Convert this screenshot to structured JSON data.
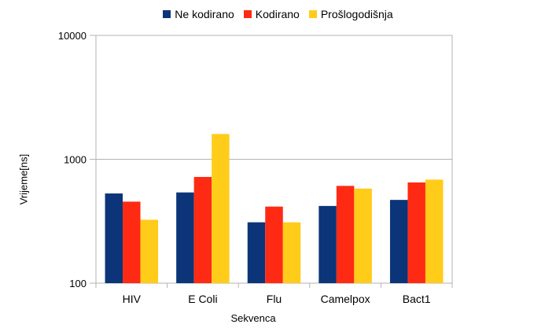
{
  "chart_data": {
    "type": "bar",
    "xlabel": "Sekvenca",
    "ylabel": "Vrijeme[ns]",
    "yscale": "log",
    "ylim": [
      100,
      10000
    ],
    "yticks": [
      "100",
      "1000",
      "10000"
    ],
    "categories": [
      "HIV",
      "E Coli",
      "Flu",
      "Camelpox",
      "Bact1"
    ],
    "series": [
      {
        "name": "Ne kodirano",
        "color": "#0b3578",
        "values": [
          530,
          540,
          310,
          420,
          470
        ]
      },
      {
        "name": "Kodirano",
        "color": "#ff2a13",
        "values": [
          455,
          720,
          415,
          610,
          650
        ]
      },
      {
        "name": "Prošlogodišnja",
        "color": "#ffcc1a",
        "values": [
          325,
          1600,
          310,
          580,
          685
        ]
      }
    ],
    "legend_position": "top",
    "grid": "horizontal major"
  }
}
